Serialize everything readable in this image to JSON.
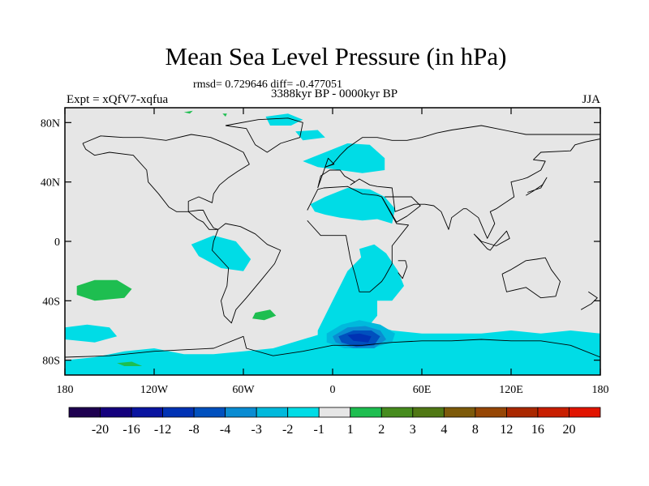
{
  "chart_data": {
    "type": "heatmap",
    "title": "Mean Sea Level Pressure (in hPa)",
    "stats_line": "rmsd= 0.729646 diff= -0.477051",
    "period_line": "3388kyr BP - 0000kyr BP",
    "left_label": "Expt = xQfV7-xqfua",
    "right_label": "JJA",
    "x_axis": {
      "range": [
        -180,
        180
      ],
      "ticks": [
        -180,
        -120,
        -60,
        0,
        60,
        120,
        180
      ],
      "tick_labels": [
        "180",
        "120W",
        "60W",
        "0",
        "60E",
        "120E",
        "180"
      ]
    },
    "y_axis": {
      "range": [
        -90,
        90
      ],
      "ticks": [
        80,
        40,
        0,
        -40,
        -80
      ],
      "tick_labels": [
        "80N",
        "40N",
        "0",
        "40S",
        "80S"
      ]
    },
    "colorbar": {
      "labels": [
        "-20",
        "-16",
        "-12",
        "-8",
        "-4",
        "-3",
        "-2",
        "-1",
        "1",
        "2",
        "3",
        "4",
        "8",
        "12",
        "16",
        "20"
      ],
      "colors": [
        "#1e0050",
        "#14007d",
        "#0a14a0",
        "#0032b4",
        "#0050be",
        "#0a8cd2",
        "#00b9dc",
        "#00dce6",
        "#e6e6e6",
        "#1ebe50",
        "#468c1e",
        "#507814",
        "#7d5a0a",
        "#964605",
        "#aa2800",
        "#c81e00",
        "#e11400"
      ]
    },
    "colors": {
      "land_fill": "#e6e6e6",
      "ocean_fill": "#e6e6e6",
      "coast": "#000000"
    },
    "anomaly_regions": [
      {
        "level": "-1",
        "color": "#00dce6",
        "lons": [
          -180,
          -160,
          -140,
          -120,
          -100,
          -80,
          -60,
          -40,
          -20,
          0,
          20,
          40,
          60,
          80,
          100,
          120,
          140,
          160,
          180,
          180,
          -180
        ],
        "lats": [
          -80,
          -78,
          -74,
          -72,
          -76,
          -76,
          -74,
          -72,
          -66,
          -60,
          -54,
          -60,
          -62,
          -62,
          -62,
          -60,
          -62,
          -60,
          -62,
          -90,
          -90
        ]
      },
      {
        "level": "-1",
        "color": "#00dce6",
        "lons": [
          -10,
          0,
          10,
          20,
          30,
          30,
          20,
          10,
          0,
          -10
        ],
        "lats": [
          -60,
          -40,
          -20,
          -10,
          -30,
          -50,
          -62,
          -66,
          -66,
          -64
        ]
      },
      {
        "level": "-1",
        "color": "#00dce6",
        "lons": [
          -15,
          -5,
          10,
          25,
          35,
          42,
          40,
          30,
          20,
          5,
          -5,
          -12
        ],
        "lats": [
          25,
          30,
          36,
          35,
          30,
          22,
          12,
          15,
          14,
          16,
          18,
          20
        ]
      },
      {
        "level": "-1",
        "color": "#00dce6",
        "lons": [
          18,
          28,
          36,
          44,
          48,
          40,
          30,
          22
        ],
        "lats": [
          -5,
          -2,
          -8,
          -20,
          -30,
          -40,
          -40,
          -25
        ]
      },
      {
        "level": "-1",
        "color": "#00dce6",
        "lons": [
          -20,
          -5,
          10,
          25,
          35,
          35,
          20,
          5,
          -10
        ],
        "lats": [
          54,
          60,
          66,
          65,
          56,
          48,
          46,
          48,
          50
        ]
      },
      {
        "level": "-1",
        "color": "#00dce6",
        "lons": [
          -95,
          -80,
          -65,
          -55,
          -60,
          -75,
          -90
        ],
        "lats": [
          -2,
          4,
          0,
          -12,
          -20,
          -18,
          -10
        ]
      },
      {
        "level": "-1",
        "color": "#00dce6",
        "lons": [
          -180,
          -165,
          -150,
          -145,
          -160,
          -180
        ],
        "lats": [
          -58,
          -56,
          -58,
          -64,
          -68,
          -66
        ]
      },
      {
        "level": "-1",
        "color": "#00dce6",
        "lons": [
          -45,
          -30,
          -20,
          -28,
          -42
        ],
        "lats": [
          84,
          86,
          82,
          78,
          78
        ]
      },
      {
        "level": "-1",
        "color": "#00dce6",
        "lons": [
          -25,
          -10,
          -5,
          -20
        ],
        "lats": [
          74,
          75,
          70,
          68
        ]
      },
      {
        "level": "-2",
        "color": "#00b9dc",
        "lons": [
          -4,
          6,
          18,
          32,
          42,
          40,
          26,
          8,
          -4
        ],
        "lats": [
          -62,
          -56,
          -53,
          -56,
          -62,
          -68,
          -72,
          -72,
          -68
        ]
      },
      {
        "level": "-3",
        "color": "#0a8cd2",
        "lons": [
          0,
          10,
          22,
          32,
          36,
          28,
          14,
          2
        ],
        "lats": [
          -64,
          -58,
          -57,
          -60,
          -66,
          -72,
          -72,
          -68
        ]
      },
      {
        "level": "-4",
        "color": "#0050be",
        "lons": [
          4,
          14,
          26,
          32,
          28,
          16,
          6
        ],
        "lats": [
          -64,
          -60,
          -60,
          -64,
          -70,
          -71,
          -68
        ]
      },
      {
        "level": "-8",
        "color": "#0032b4",
        "lons": [
          10,
          18,
          26,
          24,
          14
        ],
        "lats": [
          -63,
          -62,
          -64,
          -68,
          -67
        ]
      },
      {
        "level": "2",
        "color": "#1ebe50",
        "lons": [
          -172,
          -160,
          -145,
          -135,
          -140,
          -160,
          -172
        ],
        "lats": [
          -30,
          -26,
          -26,
          -32,
          -38,
          -40,
          -36
        ]
      },
      {
        "level": "2",
        "color": "#1ebe50",
        "lons": [
          -52,
          -42,
          -38,
          -46,
          -54
        ],
        "lats": [
          -48,
          -46,
          -50,
          -53,
          -52
        ]
      },
      {
        "level": "2",
        "color": "#1ebe50",
        "lons": [
          -145,
          -135,
          -128,
          -140
        ],
        "lats": [
          -82,
          -81,
          -84,
          -84
        ]
      },
      {
        "level": "2",
        "color": "#1ebe50",
        "lons": [
          -100,
          -94,
          -96
        ],
        "lats": [
          87,
          88,
          86
        ]
      },
      {
        "level": "2",
        "color": "#1ebe50",
        "lons": [
          -74,
          -71,
          -72
        ],
        "lats": [
          86,
          86,
          84
        ]
      }
    ],
    "coastlines": [
      {
        "name": "north-america",
        "lons": [
          -168,
          -156,
          -141,
          -128,
          -112,
          -95,
          -82,
          -70,
          -60,
          -56,
          -64,
          -70,
          -76,
          -80,
          -81,
          -90,
          -97,
          -97,
          -105,
          -110,
          -117,
          -124,
          -125,
          -134,
          -150,
          -160,
          -166,
          -168
        ],
        "lats": [
          66,
          71,
          70,
          70,
          68,
          72,
          70,
          65,
          60,
          52,
          47,
          43,
          38,
          32,
          26,
          30,
          27,
          20,
          20,
          23,
          32,
          40,
          48,
          58,
          60,
          58,
          62,
          66
        ]
      },
      {
        "name": "central-america",
        "lons": [
          -97,
          -90,
          -87,
          -84,
          -80,
          -77,
          -83,
          -87,
          -91,
          -97
        ],
        "lats": [
          20,
          21,
          21,
          15,
          9,
          8,
          8,
          13,
          15,
          20
        ]
      },
      {
        "name": "south-america",
        "lons": [
          -77,
          -72,
          -62,
          -52,
          -44,
          -35,
          -39,
          -48,
          -58,
          -65,
          -68,
          -73,
          -75,
          -71,
          -70,
          -81,
          -80,
          -77
        ],
        "lats": [
          8,
          12,
          10,
          5,
          -2,
          -6,
          -15,
          -26,
          -38,
          -46,
          -55,
          -50,
          -40,
          -30,
          -18,
          -6,
          0,
          8
        ]
      },
      {
        "name": "greenland",
        "lons": [
          -72,
          -50,
          -30,
          -20,
          -22,
          -35,
          -44,
          -52,
          -58,
          -72
        ],
        "lats": [
          78,
          82,
          83,
          80,
          70,
          66,
          60,
          65,
          76,
          78
        ]
      },
      {
        "name": "eurasia",
        "lons": [
          -10,
          -8,
          -2,
          5,
          8,
          15,
          12,
          18,
          25,
          30,
          40,
          42,
          55,
          57,
          62,
          68,
          73,
          78,
          80,
          88,
          90,
          98,
          104,
          109,
          106,
          110,
          122,
          120,
          128,
          131,
          140,
          143,
          135,
          140,
          160,
          163,
          170,
          180,
          180,
          130,
          110,
          100,
          80,
          70,
          60,
          50,
          40,
          30,
          25,
          20,
          10,
          5,
          0,
          -5,
          -10
        ],
        "lats": [
          36,
          44,
          48,
          48,
          44,
          40,
          38,
          42,
          38,
          37,
          36,
          20,
          25,
          25,
          25,
          24,
          20,
          8,
          16,
          22,
          22,
          16,
          2,
          12,
          20,
          22,
          30,
          40,
          42,
          43,
          48,
          54,
          55,
          60,
          61,
          65,
          67,
          69,
          72,
          72,
          76,
          78,
          75,
          73,
          70,
          68,
          68,
          70,
          70,
          70,
          63,
          58,
          52,
          50,
          36
        ]
      },
      {
        "name": "africa",
        "lons": [
          -17,
          -10,
          -6,
          10,
          20,
          30,
          33,
          43,
          51,
          40,
          40,
          35,
          33,
          25,
          18,
          15,
          12,
          9,
          -8,
          -17
        ],
        "lats": [
          21,
          35,
          36,
          37,
          32,
          31,
          30,
          12,
          11,
          -3,
          -15,
          -24,
          -27,
          -34,
          -34,
          -22,
          -12,
          4,
          4,
          14
        ]
      },
      {
        "name": "arabia",
        "lons": [
          33,
          43,
          50,
          59,
          56,
          53,
          44,
          35
        ],
        "lats": [
          30,
          13,
          17,
          24,
          27,
          30,
          30,
          30
        ]
      },
      {
        "name": "madagascar",
        "lons": [
          44,
          49,
          50,
          47,
          44
        ],
        "lats": [
          -13,
          -13,
          -17,
          -25,
          -21
        ]
      },
      {
        "name": "australia",
        "lons": [
          114,
          120,
          130,
          137,
          143,
          147,
          153,
          150,
          140,
          130,
          117,
          114
        ],
        "lats": [
          -22,
          -19,
          -13,
          -12,
          -11,
          -19,
          -27,
          -37,
          -38,
          -31,
          -34,
          -22
        ]
      },
      {
        "name": "new-zealand",
        "lons": [
          172,
          178,
          174,
          167
        ],
        "lats": [
          -34,
          -38,
          -42,
          -46
        ]
      },
      {
        "name": "japan",
        "lons": [
          130,
          135,
          141,
          144,
          140,
          131
        ],
        "lats": [
          31,
          34,
          38,
          43,
          36,
          33
        ]
      },
      {
        "name": "great-britain",
        "lons": [
          -5,
          -3,
          1,
          -2,
          -5
        ],
        "lats": [
          50,
          56,
          52,
          51,
          50
        ]
      },
      {
        "name": "borneo-sumatra",
        "lons": [
          95,
          104,
          106,
          109,
          117,
          119,
          110,
          100,
          95
        ],
        "lats": [
          5,
          -5,
          -6,
          -2,
          7,
          2,
          -3,
          0,
          5
        ]
      },
      {
        "name": "antarctica",
        "lons": [
          -180,
          -150,
          -120,
          -100,
          -80,
          -60,
          -58,
          -40,
          -20,
          0,
          20,
          40,
          60,
          80,
          100,
          120,
          140,
          160,
          180
        ],
        "lats": [
          -78,
          -77,
          -74,
          -73,
          -72,
          -64,
          -72,
          -77,
          -74,
          -70,
          -70,
          -68,
          -67,
          -67,
          -66,
          -67,
          -67,
          -70,
          -78
        ]
      }
    ]
  }
}
